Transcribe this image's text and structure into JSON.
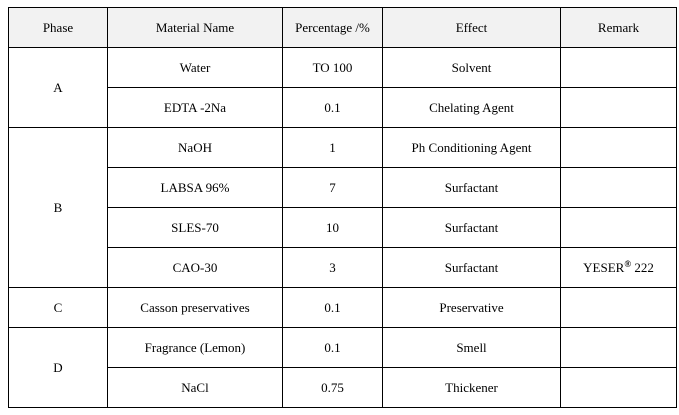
{
  "table": {
    "headers": [
      "Phase",
      "Material Name",
      "Percentage /%",
      "Effect",
      "Remark"
    ],
    "phases": [
      {
        "phase": "A",
        "rows": [
          {
            "material": "Water",
            "percentage": "TO 100",
            "effect": "Solvent",
            "remark": ""
          },
          {
            "material": "EDTA -2Na",
            "percentage": "0.1",
            "effect": "Chelating Agent",
            "remark": ""
          }
        ]
      },
      {
        "phase": "B",
        "rows": [
          {
            "material": "NaOH",
            "percentage": "1",
            "effect": "Ph Conditioning Agent",
            "remark": ""
          },
          {
            "material": "LABSA 96%",
            "percentage": "7",
            "effect": "Surfactant",
            "remark": ""
          },
          {
            "material": "SLES-70",
            "percentage": "10",
            "effect": "Surfactant",
            "remark": ""
          },
          {
            "material": "CAO-30",
            "percentage": "3",
            "effect": "Surfactant",
            "remark": "YESER® 222"
          }
        ]
      },
      {
        "phase": "C",
        "rows": [
          {
            "material": "Casson preservatives",
            "percentage": "0.1",
            "effect": "Preservative",
            "remark": ""
          }
        ]
      },
      {
        "phase": "D",
        "rows": [
          {
            "material": "Fragrance (Lemon)",
            "percentage": "0.1",
            "effect": "Smell",
            "remark": ""
          },
          {
            "material": "NaCl",
            "percentage": "0.75",
            "effect": "Thickener",
            "remark": ""
          }
        ]
      }
    ]
  },
  "colors": {
    "header_background": "#f2f2f2",
    "border": "#000000"
  }
}
